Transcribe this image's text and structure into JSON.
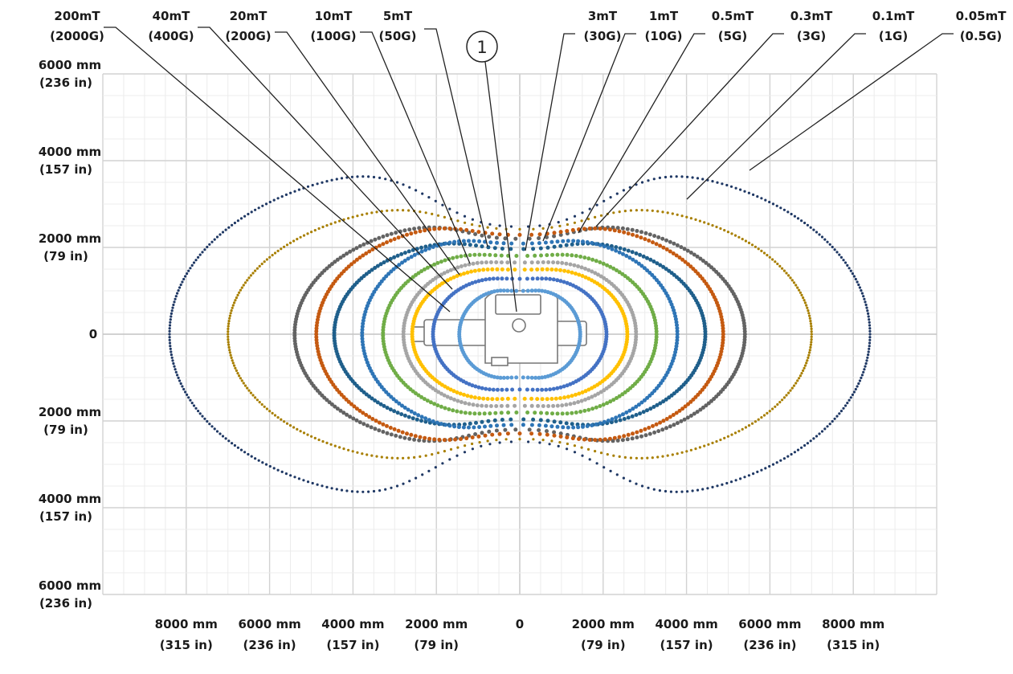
{
  "chart_data": {
    "type": "scatter",
    "units": "mm",
    "xlim": [
      -10000,
      10000
    ],
    "ylim": [
      -6000,
      6000
    ],
    "grid": true,
    "marker_label": "1",
    "x_ticks": [
      {
        "value": -8000,
        "mm": "8000 mm",
        "inch": "(315 in)"
      },
      {
        "value": -6000,
        "mm": "6000 mm",
        "inch": "(236 in)"
      },
      {
        "value": -4000,
        "mm": "4000 mm",
        "inch": "(157 in)"
      },
      {
        "value": -2000,
        "mm": "2000 mm",
        "inch": "(79 in)"
      },
      {
        "value": 0,
        "mm": "0",
        "inch": ""
      },
      {
        "value": 2000,
        "mm": "2000 mm",
        "inch": "(79 in)"
      },
      {
        "value": 4000,
        "mm": "4000 mm",
        "inch": "(157 in)"
      },
      {
        "value": 6000,
        "mm": "6000 mm",
        "inch": "(236 in)"
      },
      {
        "value": 8000,
        "mm": "8000 mm",
        "inch": "(315 in)"
      }
    ],
    "y_ticks": [
      {
        "value": 6000,
        "mm": "6000 mm",
        "inch": "(236 in)"
      },
      {
        "value": 4000,
        "mm": "4000 mm",
        "inch": "(157 in)"
      },
      {
        "value": 2000,
        "mm": "2000 mm",
        "inch": "(79 in)"
      },
      {
        "value": 0,
        "mm": "0",
        "inch": ""
      },
      {
        "value": -2000,
        "mm": "2000 mm",
        "inch": "(79 in)"
      },
      {
        "value": -4000,
        "mm": "4000 mm",
        "inch": "(157 in)"
      },
      {
        "value": -6000,
        "mm": "6000 mm",
        "inch": "(236 in)"
      }
    ],
    "series": [
      {
        "name": "200mT",
        "gauss": "(2000G)",
        "color": "#5b9bd5",
        "a": 1450,
        "b": 1050,
        "lobe": 0.05
      },
      {
        "name": "40mT",
        "gauss": "(400G)",
        "color": "#4472c4",
        "a": 2080,
        "b": 1330,
        "lobe": 0.04
      },
      {
        "name": "20mT",
        "gauss": "(200G)",
        "color": "#ffc000",
        "a": 2580,
        "b": 1550,
        "lobe": 0.04
      },
      {
        "name": "10mT",
        "gauss": "(100G)",
        "color": "#a5a5a5",
        "a": 2790,
        "b": 1720,
        "lobe": 0.04
      },
      {
        "name": "5mT",
        "gauss": "(50G)",
        "color": "#70ad47",
        "a": 3280,
        "b": 1920,
        "lobe": 0.06
      },
      {
        "name": "3mT",
        "gauss": "(30G)",
        "color": "#2e75b6",
        "a": 3780,
        "b": 2270,
        "lobe": 0.08
      },
      {
        "name": "1mT",
        "gauss": "(10G)",
        "color": "#1f5f8b",
        "a": 4450,
        "b": 2230,
        "lobe": 0.12
      },
      {
        "name": "0.5mT",
        "gauss": "(5G)",
        "color": "#c55a11",
        "a": 4880,
        "b": 2600,
        "lobe": 0.12
      },
      {
        "name": "0.3mT",
        "gauss": "(3G)",
        "color": "#636363",
        "a": 5400,
        "b": 2650,
        "lobe": 0.17
      },
      {
        "name": "0.1mT",
        "gauss": "(1G)",
        "color": "#a87f00",
        "a": 7000,
        "b": 3100,
        "lobe": 0.22
      },
      {
        "name": "0.05mT",
        "gauss": "(0.5G)",
        "color": "#1f3864",
        "a": 8400,
        "b": 4000,
        "lobe": 0.38
      }
    ]
  }
}
